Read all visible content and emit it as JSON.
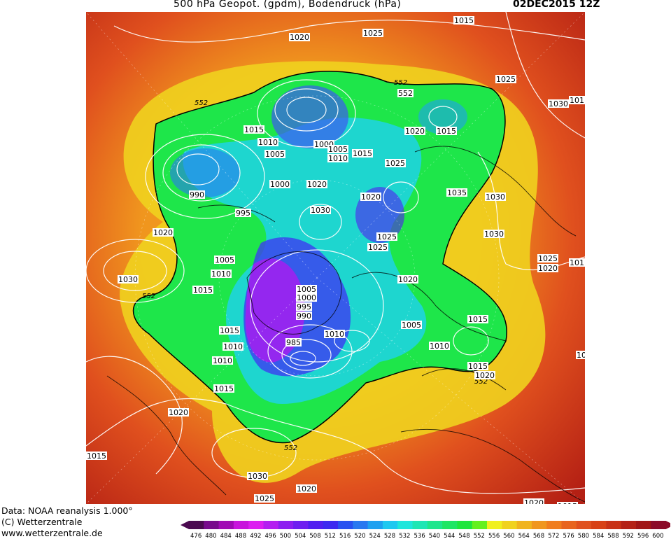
{
  "header": {
    "title": "500 hPa Geopot. (gpdm), Bodendruck (hPa)",
    "date": "02DEC2015 12Z"
  },
  "credits": {
    "line1": "Data: NOAA reanalysis 1.000°",
    "line2": "(C) Wetterzentrale",
    "line3": "www.wetterzentrale.de"
  },
  "colors": {
    "background_warm": "#d24a1e",
    "deep_red": "#b4201c",
    "orange": "#e8781e",
    "yellow": "#f0d010",
    "green": "#1ee650",
    "cyan": "#1ed2d2",
    "blue": "#285af0",
    "violet": "#7814dc",
    "magenta": "#dc14dc",
    "contour": "#ffffff",
    "coast": "#000000"
  },
  "legend": {
    "values": [
      "476",
      "480",
      "484",
      "488",
      "492",
      "496",
      "500",
      "504",
      "508",
      "512",
      "516",
      "520",
      "524",
      "528",
      "532",
      "536",
      "540",
      "544",
      "548",
      "552",
      "556",
      "560",
      "564",
      "568",
      "572",
      "576",
      "580",
      "584",
      "588",
      "592",
      "596",
      "600"
    ],
    "colors": [
      "#4b0a50",
      "#780a8c",
      "#a00ab4",
      "#c814dc",
      "#dc1ef0",
      "#b41ef0",
      "#8c1ef0",
      "#6e1ef0",
      "#501ef0",
      "#3c28f0",
      "#2850f0",
      "#2878f0",
      "#1ea0f0",
      "#1ec8f0",
      "#1ee6dc",
      "#1ee6b4",
      "#1ee68c",
      "#1ee664",
      "#1ee63c",
      "#64f01e",
      "#f0f01e",
      "#f0d21e",
      "#f0b41e",
      "#f0961e",
      "#f07d1e",
      "#e8641e",
      "#e0501e",
      "#d84014",
      "#c83014",
      "#b42014",
      "#a01414",
      "#8c0a28"
    ]
  },
  "map": {
    "labels_552": [
      "552",
      "552",
      "552",
      "552",
      "552",
      "552"
    ],
    "pressure_labels": [
      "1020",
      "1025",
      "1015",
      "1025",
      "1030",
      "552",
      "1015",
      "1010",
      "1005",
      "1000",
      "1005",
      "1010",
      "1015",
      "1020",
      "1015",
      "990",
      "1000",
      "1020",
      "1020",
      "1025",
      "1035",
      "995",
      "1030",
      "1025",
      "1030",
      "1020",
      "1005",
      "1010",
      "1015",
      "1020",
      "1025",
      "1005",
      "1000",
      "995",
      "990",
      "1010",
      "1015",
      "1005",
      "1015",
      "1010",
      "985",
      "1010",
      "1015",
      "1020",
      "1010",
      "1015",
      "1020",
      "1030",
      "1015",
      "1030",
      "1025",
      "1020",
      "1020",
      "1015",
      "1025",
      "101",
      "101",
      "101",
      "1030",
      "1020"
    ]
  }
}
